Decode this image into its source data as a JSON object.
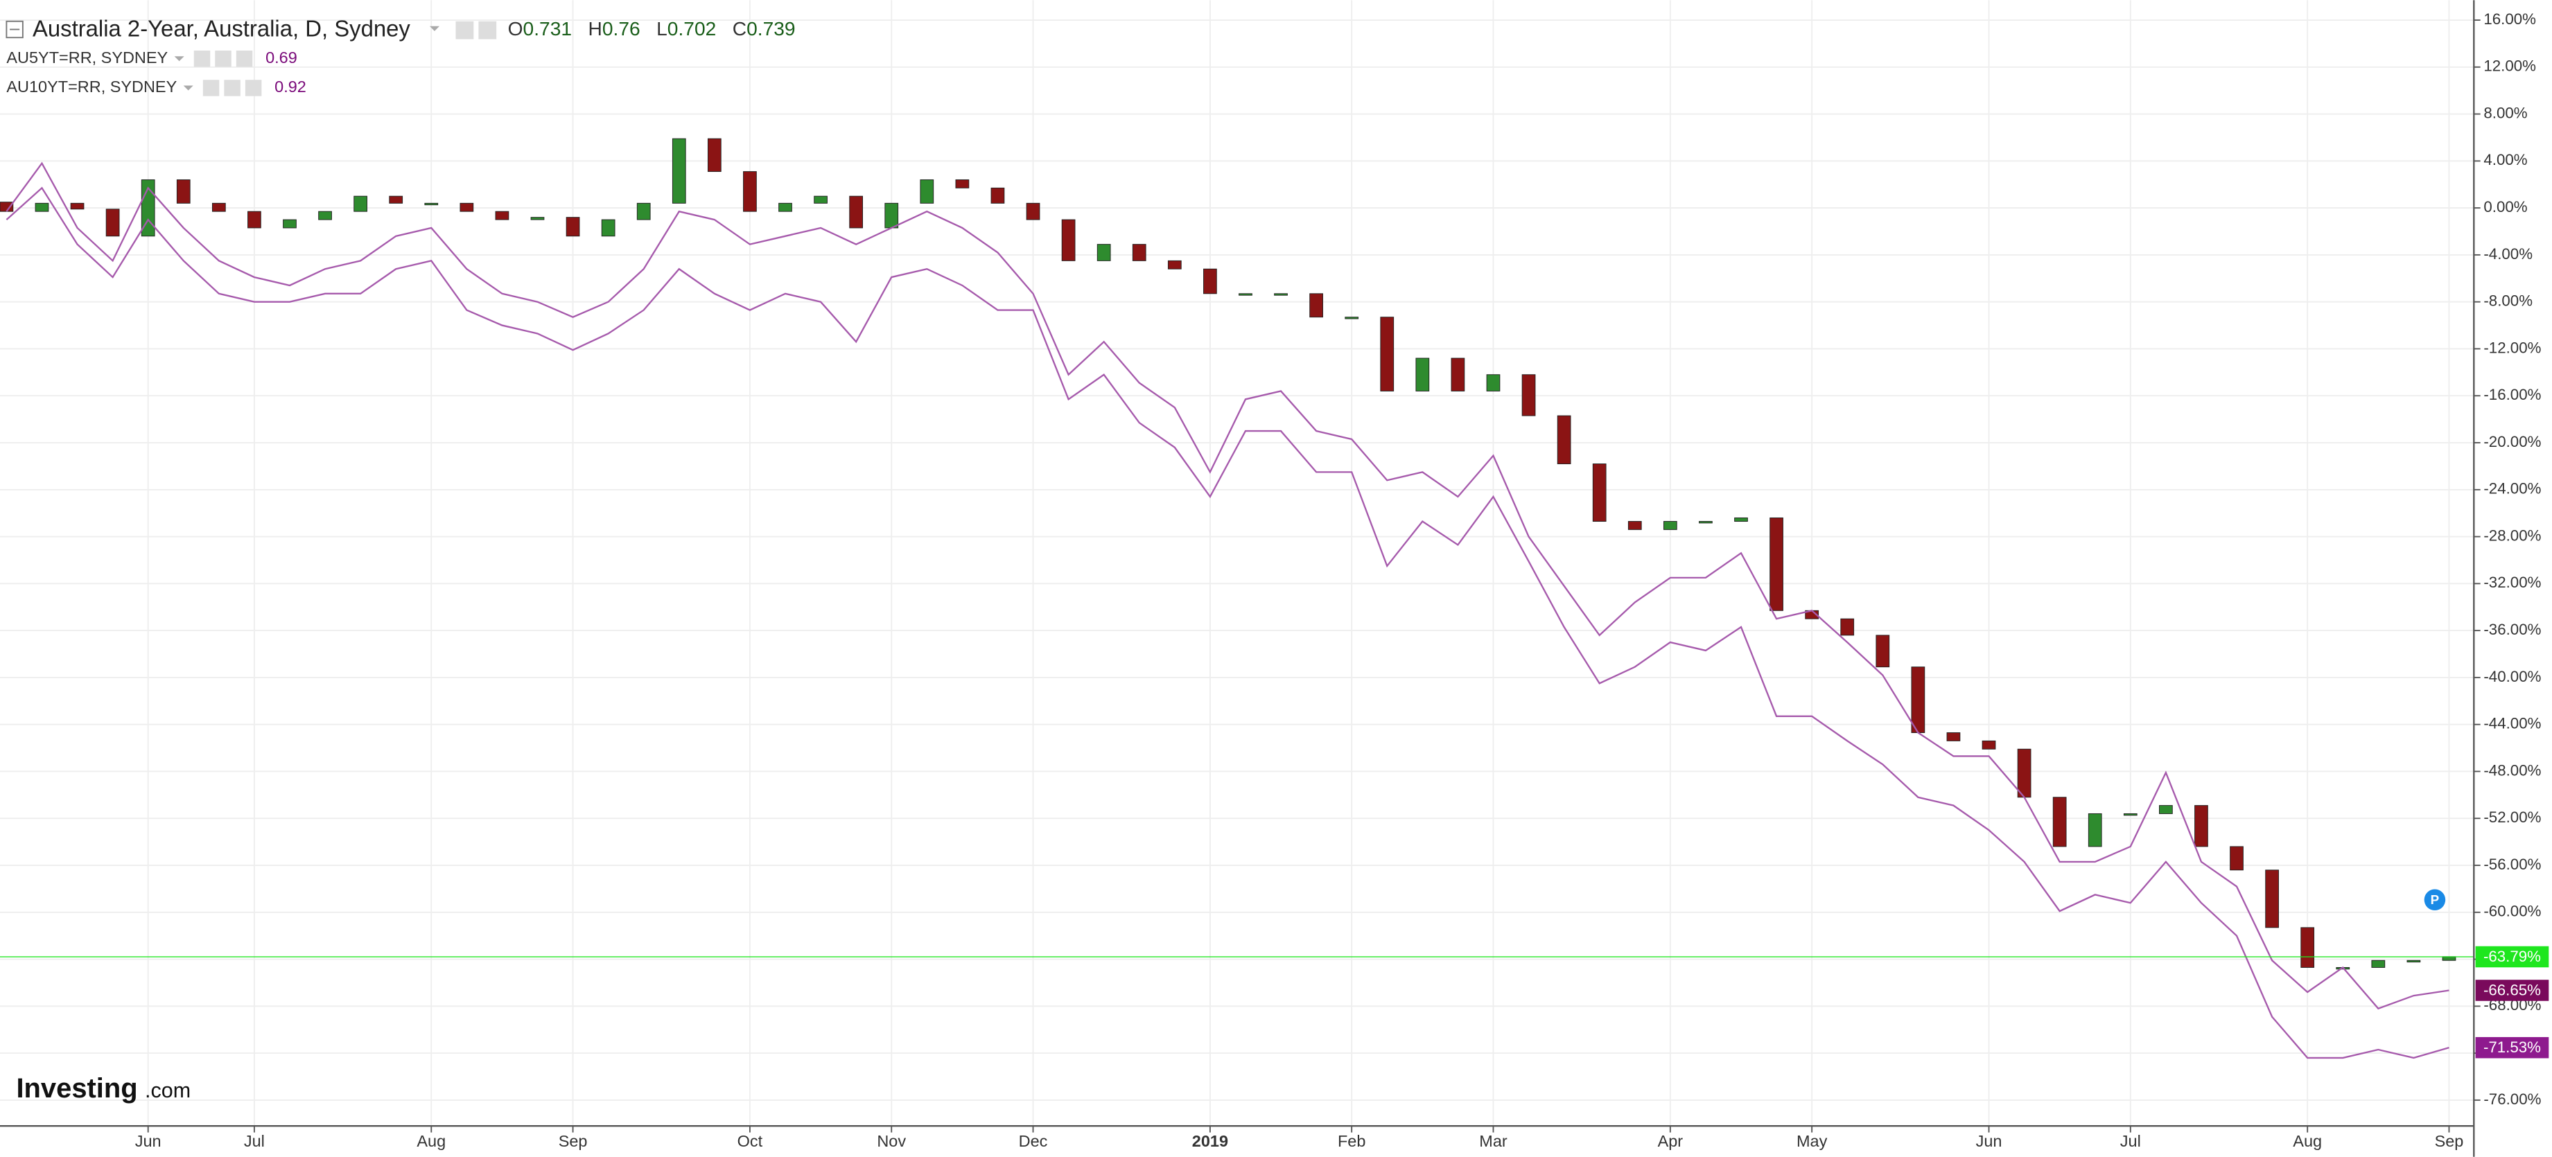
{
  "chart_data": {
    "type": "candlestick",
    "title": "Australia 2-Year, Australia, D, Sydney",
    "ohlc": [
      {
        "label": "O",
        "value": 0.731
      },
      {
        "label": "H",
        "value": 0.76
      },
      {
        "label": "L",
        "value": 0.702
      },
      {
        "label": "C",
        "value": 0.739
      }
    ],
    "categories": [
      null,
      null,
      null,
      null,
      "Jun",
      null,
      null,
      "Jul",
      null,
      null,
      null,
      null,
      "Aug",
      null,
      null,
      null,
      "Sep",
      null,
      null,
      null,
      null,
      "Oct",
      null,
      null,
      null,
      "Nov",
      null,
      null,
      null,
      "Dec",
      null,
      null,
      null,
      null,
      "2019",
      null,
      null,
      null,
      "Feb",
      null,
      null,
      null,
      "Mar",
      null,
      null,
      null,
      null,
      "Apr",
      null,
      null,
      null,
      "May",
      null,
      null,
      null,
      null,
      "Jun",
      null,
      null,
      null,
      "Jul",
      null,
      null,
      null,
      null,
      "Aug",
      null,
      null,
      null,
      "Sep"
    ],
    "ylim": [
      -78.2,
      17.7
    ],
    "yticks": [
      {
        "value": 16,
        "label": "16.00%"
      },
      {
        "value": 12,
        "label": "12.00%"
      },
      {
        "value": 8,
        "label": "8.00%"
      },
      {
        "value": 4,
        "label": "4.00%"
      },
      {
        "value": 0,
        "label": "0.00%"
      },
      {
        "value": -4,
        "label": "-4.00%"
      },
      {
        "value": -8,
        "label": "-8.00%"
      },
      {
        "value": -12,
        "label": "-12.00%"
      },
      {
        "value": -16,
        "label": "-16.00%"
      },
      {
        "value": -20,
        "label": "-20.00%"
      },
      {
        "value": -24,
        "label": "-24.00%"
      },
      {
        "value": -28,
        "label": "-28.00%"
      },
      {
        "value": -32,
        "label": "-32.00%"
      },
      {
        "value": -36,
        "label": "-36.00%"
      },
      {
        "value": -40,
        "label": "-40.00%"
      },
      {
        "value": -44,
        "label": "-44.00%"
      },
      {
        "value": -48,
        "label": "-48.00%"
      },
      {
        "value": -52,
        "label": "-52.00%"
      },
      {
        "value": -56,
        "label": "-56.00%"
      },
      {
        "value": -60,
        "label": "-60.00%"
      },
      {
        "value": -64,
        "label": "-64.00%"
      },
      {
        "value": -68,
        "label": "-68.00%"
      },
      {
        "value": -72,
        "label": "-72.00%"
      },
      {
        "value": -76,
        "label": "-76.00%"
      }
    ],
    "grid": true,
    "series": [
      {
        "up_color": "#2e8b2e",
        "down_color": "#8b1414",
        "label_color": "#1ee61e",
        "last_label": "-63.79%",
        "open": [
          0.5,
          -0.3,
          0.4,
          -0.1,
          -2.4,
          2.4,
          0.4,
          -0.3,
          -1.7,
          -1.0,
          -0.3,
          1.0,
          0.4,
          0.4,
          -0.3,
          -1.0,
          -0.8,
          -2.4,
          -1.0,
          0.4,
          5.9,
          3.1,
          -0.3,
          0.4,
          1.0,
          -1.7,
          0.4,
          2.4,
          1.7,
          0.4,
          -1.0,
          -4.5,
          -3.1,
          -4.5,
          -5.2,
          -7.3,
          -7.3,
          -7.3,
          -9.3,
          -9.3,
          -15.6,
          -12.8,
          -15.6,
          -14.2,
          -17.7,
          -21.8,
          -26.7,
          -27.4,
          -26.7,
          -26.7,
          -26.4,
          -34.3,
          -35.0,
          -36.4,
          -39.1,
          -44.7,
          -45.4,
          -46.1,
          -50.2,
          -54.4,
          -51.6,
          -51.6,
          -50.9,
          -54.4,
          -56.4,
          -61.3,
          -64.7,
          -64.7,
          -64.1,
          -64.1
        ],
        "values": [
          -0.3,
          0.4,
          -0.1,
          -2.4,
          2.4,
          0.4,
          -0.3,
          -1.7,
          -1.0,
          -0.3,
          1.0,
          0.4,
          0.4,
          -0.3,
          -1.0,
          -0.8,
          -2.4,
          -1.0,
          0.4,
          5.9,
          3.1,
          -0.3,
          0.4,
          1.0,
          -1.7,
          0.4,
          2.4,
          1.7,
          0.4,
          -1.0,
          -4.5,
          -3.1,
          -4.5,
          -5.2,
          -7.3,
          -7.3,
          -7.3,
          -9.3,
          -9.3,
          -15.6,
          -12.8,
          -15.6,
          -14.2,
          -17.7,
          -21.8,
          -26.7,
          -27.4,
          -26.7,
          -26.7,
          -26.4,
          -34.3,
          -35.0,
          -36.4,
          -39.1,
          -44.7,
          -45.4,
          -46.1,
          -50.2,
          -54.4,
          -51.6,
          -51.6,
          -50.9,
          -54.4,
          -56.4,
          -61.3,
          -64.7,
          -64.7,
          -64.1,
          -64.1,
          -63.79
        ]
      },
      {
        "name": "AU5YT=RR, SYDNEY",
        "legend_value": 0.69,
        "color": "#a65aac",
        "label_color": "#7a0a5c",
        "last_label": "-66.65%",
        "values": [
          -0.3,
          3.8,
          -1.7,
          -4.5,
          1.7,
          -1.7,
          -4.5,
          -5.9,
          -6.6,
          -5.2,
          -4.5,
          -2.4,
          -1.7,
          -5.2,
          -7.3,
          -8.0,
          -9.3,
          -8.0,
          -5.2,
          -0.3,
          -1.0,
          -3.1,
          -2.4,
          -1.7,
          -3.1,
          -1.7,
          -0.3,
          -1.7,
          -3.8,
          -7.3,
          -14.2,
          -11.4,
          -14.9,
          -17.0,
          -22.5,
          -16.3,
          -15.6,
          -19.0,
          -19.7,
          -23.2,
          -22.5,
          -24.6,
          -21.1,
          -28.0,
          -32.2,
          -36.4,
          -33.6,
          -31.5,
          -31.5,
          -29.4,
          -35.0,
          -34.3,
          -37.0,
          -39.8,
          -44.7,
          -46.7,
          -46.7,
          -50.2,
          -55.7,
          -55.7,
          -54.4,
          -48.1,
          -55.7,
          -57.8,
          -64.1,
          -66.8,
          -64.7,
          -68.2,
          -67.1,
          -66.65
        ]
      },
      {
        "name": "AU10YT=RR, SYDNEY",
        "legend_value": 0.92,
        "color": "#a65aac",
        "label_color": "#8e1a8e",
        "last_label": "-71.53%",
        "values": [
          -1.0,
          1.7,
          -3.1,
          -5.9,
          -1.0,
          -4.5,
          -7.3,
          -8.0,
          -8.0,
          -7.3,
          -7.3,
          -5.2,
          -4.5,
          -8.7,
          -10.0,
          -10.7,
          -12.1,
          -10.7,
          -8.7,
          -5.2,
          -7.3,
          -8.7,
          -7.3,
          -8.0,
          -11.4,
          -5.9,
          -5.2,
          -6.6,
          -8.7,
          -8.7,
          -16.3,
          -14.2,
          -18.3,
          -20.4,
          -24.6,
          -19.0,
          -19.0,
          -22.5,
          -22.5,
          -30.5,
          -26.7,
          -28.7,
          -24.6,
          -30.1,
          -35.7,
          -40.5,
          -39.1,
          -37.0,
          -37.7,
          -35.7,
          -43.3,
          -43.3,
          -45.4,
          -47.4,
          -50.2,
          -50.9,
          -53.0,
          -55.7,
          -59.9,
          -58.5,
          -59.2,
          -55.7,
          -59.2,
          -62.0,
          -68.9,
          -72.4,
          -72.4,
          -71.7,
          -72.4,
          -71.53
        ]
      }
    ],
    "logo": {
      "brand": "Investing",
      "suffix": ".com"
    },
    "badge": "P"
  }
}
